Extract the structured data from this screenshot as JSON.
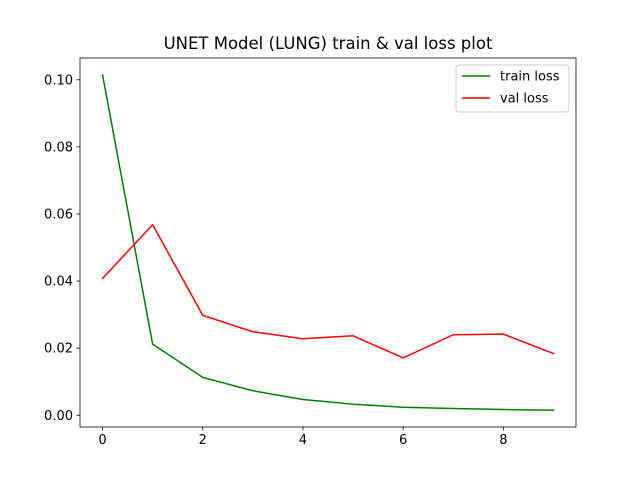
{
  "chart_data": {
    "type": "line",
    "title": "UNET Model (LUNG) train & val loss plot",
    "xlabel": "",
    "ylabel": "",
    "x": [
      0,
      1,
      2,
      3,
      4,
      5,
      6,
      7,
      8,
      9
    ],
    "series": [
      {
        "name": "train loss",
        "color": "#008000",
        "values": [
          0.1015,
          0.0212,
          0.0113,
          0.0073,
          0.0047,
          0.0033,
          0.0024,
          0.002,
          0.0017,
          0.0015
        ]
      },
      {
        "name": "val loss",
        "color": "#ff0000",
        "values": [
          0.0408,
          0.0568,
          0.0298,
          0.0249,
          0.0228,
          0.0237,
          0.0171,
          0.024,
          0.0242,
          0.0184
        ]
      }
    ],
    "xlim": [
      -0.45,
      9.45
    ],
    "ylim": [
      -0.0035,
      0.1065
    ],
    "xticks": [
      0,
      2,
      4,
      6,
      8
    ],
    "xtick_labels": [
      "0",
      "2",
      "4",
      "6",
      "8"
    ],
    "yticks": [
      0.0,
      0.02,
      0.04,
      0.06,
      0.08,
      0.1
    ],
    "ytick_labels": [
      "0.00",
      "0.02",
      "0.04",
      "0.06",
      "0.08",
      "0.10"
    ],
    "grid": false,
    "legend_position": "top-right"
  }
}
